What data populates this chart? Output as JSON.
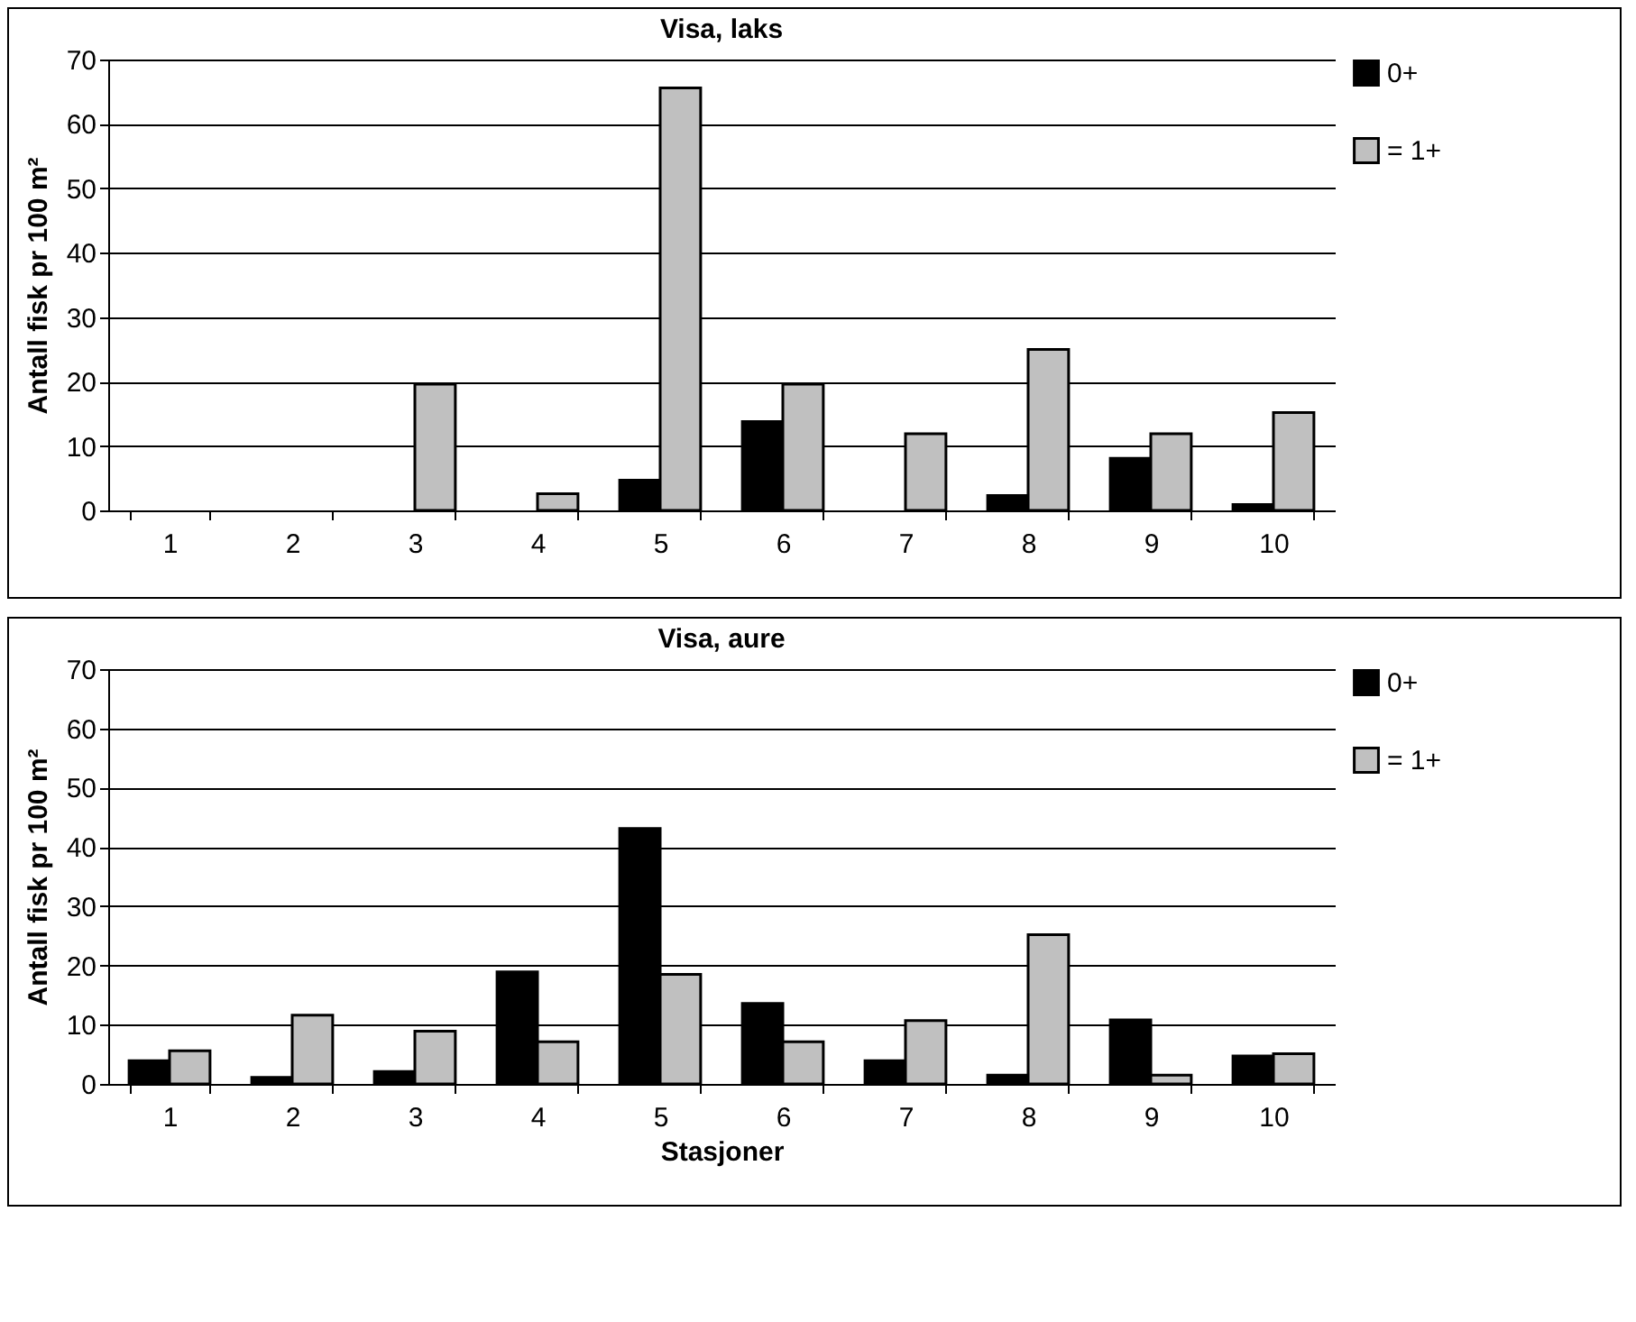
{
  "chart_data": [
    {
      "type": "bar",
      "title": "Visa, laks",
      "ylabel": "Antall fisk pr 100 m²",
      "categories": [
        "1",
        "2",
        "3",
        "4",
        "5",
        "6",
        "7",
        "8",
        "9",
        "10"
      ],
      "series": [
        {
          "name": "0+",
          "color": "#000000",
          "values": [
            0,
            0,
            0,
            0,
            4.7,
            13.8,
            0,
            2.3,
            8.1,
            0.9
          ]
        },
        {
          "name": "= 1+",
          "color": "#c0c0c0",
          "values": [
            0,
            0,
            19.6,
            2.6,
            65.6,
            19.6,
            11.9,
            25,
            11.9,
            15.2
          ]
        }
      ],
      "ylim": [
        0,
        70
      ],
      "yticks": [
        0,
        10,
        20,
        30,
        40,
        50,
        60,
        70
      ],
      "grid": "y",
      "legend": "right"
    },
    {
      "type": "bar",
      "title": "Visa, aure",
      "xlabel": "Stasjoner",
      "ylabel": "Antall fisk pr 100 m²",
      "categories": [
        "1",
        "2",
        "3",
        "4",
        "5",
        "6",
        "7",
        "8",
        "9",
        "10"
      ],
      "series": [
        {
          "name": "0+",
          "color": "#000000",
          "values": [
            3.9,
            1.1,
            2.1,
            18.9,
            43.1,
            13.6,
            3.9,
            1.5,
            10.8,
            4.7
          ]
        },
        {
          "name": "= 1+",
          "color": "#c0c0c0",
          "values": [
            5.6,
            11.6,
            8.9,
            7.1,
            18.5,
            7.1,
            10.7,
            25.2,
            1.5,
            5.1
          ]
        }
      ],
      "ylim": [
        0,
        70
      ],
      "yticks": [
        0,
        10,
        20,
        30,
        40,
        50,
        60,
        70
      ],
      "grid": "y",
      "legend": "right"
    }
  ]
}
